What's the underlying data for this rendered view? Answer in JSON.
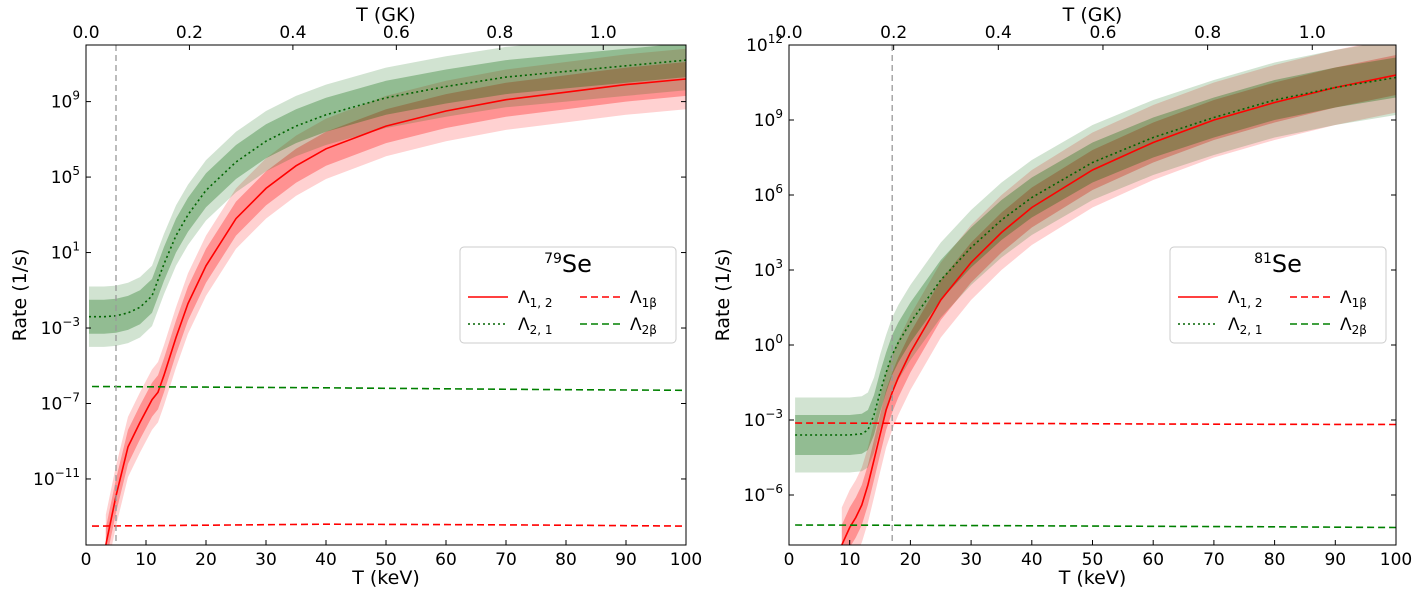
{
  "chart_data": [
    {
      "type": "line",
      "xlabel": "T (keV)",
      "x2label": "T (GK)",
      "ylabel": "Rate (1/s)",
      "xlim": [
        0,
        100
      ],
      "x2lim": [
        0,
        1.16
      ],
      "ylog": true,
      "ylim_log10": [
        -14.5,
        12.0
      ],
      "xticks": [
        "0",
        "10",
        "20",
        "30",
        "40",
        "50",
        "60",
        "70",
        "80",
        "90",
        "100"
      ],
      "x2ticks": [
        "0.0",
        "0.2",
        "0.4",
        "0.6",
        "0.8",
        "1.0"
      ],
      "yticks": [
        {
          "base": "10",
          "exp": "−11",
          "log10": -11
        },
        {
          "base": "10",
          "exp": "−7",
          "log10": -7
        },
        {
          "base": "10",
          "exp": "−3",
          "log10": -3
        },
        {
          "base": "10",
          "exp": "1",
          "log10": 1
        },
        {
          "base": "10",
          "exp": "5",
          "log10": 5
        },
        {
          "base": "10",
          "exp": "9",
          "log10": 9
        }
      ],
      "vline_x": 5,
      "legend": {
        "title_mass": "79",
        "title_element": "Se",
        "placement": "center-right",
        "entries": [
          {
            "sym": "Λ",
            "sub": "1, 2",
            "color": "#ff0000",
            "dash": "solid"
          },
          {
            "sym": "Λ",
            "sub": "1β",
            "color": "#ff0000",
            "dash": "dashed"
          },
          {
            "sym": "Λ",
            "sub": "2, 1",
            "color": "#006400",
            "dash": "dotted"
          },
          {
            "sym": "Λ",
            "sub": "2β",
            "color": "#008000",
            "dash": "dashed"
          }
        ]
      },
      "series": [
        {
          "name": "Λ1,2",
          "color": "#ff0000",
          "style": "solid",
          "x": [
            3.3,
            5,
            7,
            9,
            11,
            12,
            13,
            15,
            17,
            20,
            25,
            30,
            35,
            40,
            50,
            60,
            70,
            80,
            90,
            100
          ],
          "y_log10": [
            -14.5,
            -11.9,
            -9.3,
            -8.0,
            -6.8,
            -6.4,
            -5.5,
            -3.5,
            -1.7,
            0.3,
            2.8,
            4.4,
            5.6,
            6.5,
            7.7,
            8.5,
            9.1,
            9.5,
            9.9,
            10.2
          ],
          "band1": 0.9,
          "band2": 1.6
        },
        {
          "name": "Λ2,1",
          "color": "#006400",
          "style": "dotted",
          "x": [
            0.5,
            3,
            5,
            7,
            9,
            11,
            13,
            15,
            17,
            20,
            25,
            30,
            35,
            40,
            50,
            60,
            70,
            80,
            90,
            100
          ],
          "y_log10": [
            -2.4,
            -2.4,
            -2.35,
            -2.2,
            -1.9,
            -1.3,
            0.4,
            1.9,
            3.0,
            4.3,
            5.8,
            6.9,
            7.7,
            8.3,
            9.2,
            9.8,
            10.3,
            10.6,
            10.9,
            11.2
          ],
          "band1": 0.9,
          "band2": 1.6
        },
        {
          "name": "Λ1β",
          "color": "#ff0000",
          "style": "dashed",
          "x": [
            1,
            20,
            40,
            60,
            80,
            100
          ],
          "y_log10": [
            -13.5,
            -13.45,
            -13.4,
            -13.42,
            -13.45,
            -13.5
          ]
        },
        {
          "name": "Λ2β",
          "color": "#008000",
          "style": "dashed",
          "x": [
            1,
            20,
            40,
            60,
            80,
            100
          ],
          "y_log10": [
            -6.1,
            -6.13,
            -6.17,
            -6.22,
            -6.27,
            -6.3
          ]
        }
      ]
    },
    {
      "type": "line",
      "xlabel": "T (keV)",
      "x2label": "T (GK)",
      "ylabel": "Rate (1/s)",
      "xlim": [
        0,
        100
      ],
      "x2lim": [
        0,
        1.16
      ],
      "ylog": true,
      "ylim_log10": [
        -8.0,
        12.0
      ],
      "xticks": [
        "0",
        "10",
        "20",
        "30",
        "40",
        "50",
        "60",
        "70",
        "80",
        "90",
        "100"
      ],
      "x2ticks": [
        "0.0",
        "0.2",
        "0.4",
        "0.6",
        "0.8",
        "1.0"
      ],
      "yticks": [
        {
          "base": "10",
          "exp": "−6",
          "log10": -6
        },
        {
          "base": "10",
          "exp": "−3",
          "log10": -3
        },
        {
          "base": "10",
          "exp": "0",
          "log10": 0
        },
        {
          "base": "10",
          "exp": "3",
          "log10": 3
        },
        {
          "base": "10",
          "exp": "6",
          "log10": 6
        },
        {
          "base": "10",
          "exp": "9",
          "log10": 9
        },
        {
          "base": "10",
          "exp": "12",
          "log10": 12
        }
      ],
      "vline_x": 17,
      "legend": {
        "title_mass": "81",
        "title_element": "Se",
        "placement": "center-right",
        "entries": [
          {
            "sym": "Λ",
            "sub": "1, 2",
            "color": "#ff0000",
            "dash": "solid"
          },
          {
            "sym": "Λ",
            "sub": "1β",
            "color": "#ff0000",
            "dash": "dashed"
          },
          {
            "sym": "Λ",
            "sub": "2, 1",
            "color": "#006400",
            "dash": "dotted"
          },
          {
            "sym": "Λ",
            "sub": "2β",
            "color": "#008000",
            "dash": "dashed"
          }
        ]
      },
      "series": [
        {
          "name": "Λ1,2",
          "color": "#ff0000",
          "style": "solid",
          "x": [
            8.7,
            10,
            11,
            12,
            13,
            14,
            15,
            16,
            17,
            18,
            20,
            25,
            30,
            35,
            40,
            50,
            60,
            70,
            80,
            90,
            100
          ],
          "y_log10": [
            -8.0,
            -7.3,
            -6.9,
            -6.4,
            -5.6,
            -4.6,
            -3.6,
            -2.6,
            -1.9,
            -1.3,
            -0.3,
            1.8,
            3.3,
            4.5,
            5.5,
            7.0,
            8.1,
            9.0,
            9.7,
            10.3,
            10.8
          ],
          "band1": 0.8,
          "band2": 1.5
        },
        {
          "name": "Λ2,1",
          "color": "#006400",
          "style": "dotted",
          "x": [
            1,
            8,
            10,
            12,
            13,
            14,
            15,
            16,
            17,
            18,
            20,
            25,
            30,
            35,
            40,
            50,
            60,
            70,
            80,
            90,
            100
          ],
          "y_log10": [
            -3.6,
            -3.6,
            -3.6,
            -3.55,
            -3.4,
            -2.8,
            -1.9,
            -1.1,
            -0.4,
            0.1,
            0.9,
            2.6,
            3.9,
            5.0,
            5.9,
            7.3,
            8.3,
            9.1,
            9.8,
            10.3,
            10.7
          ],
          "band1": 0.8,
          "band2": 1.5
        },
        {
          "name": "Λ1β",
          "color": "#ff0000",
          "style": "dashed",
          "x": [
            1,
            20,
            40,
            60,
            80,
            100
          ],
          "y_log10": [
            -3.12,
            -3.13,
            -3.14,
            -3.16,
            -3.17,
            -3.18
          ]
        },
        {
          "name": "Λ2β",
          "color": "#008000",
          "style": "dashed",
          "x": [
            1,
            20,
            40,
            60,
            80,
            100
          ],
          "y_log10": [
            -7.2,
            -7.21,
            -7.23,
            -7.25,
            -7.27,
            -7.3
          ]
        }
      ]
    }
  ]
}
